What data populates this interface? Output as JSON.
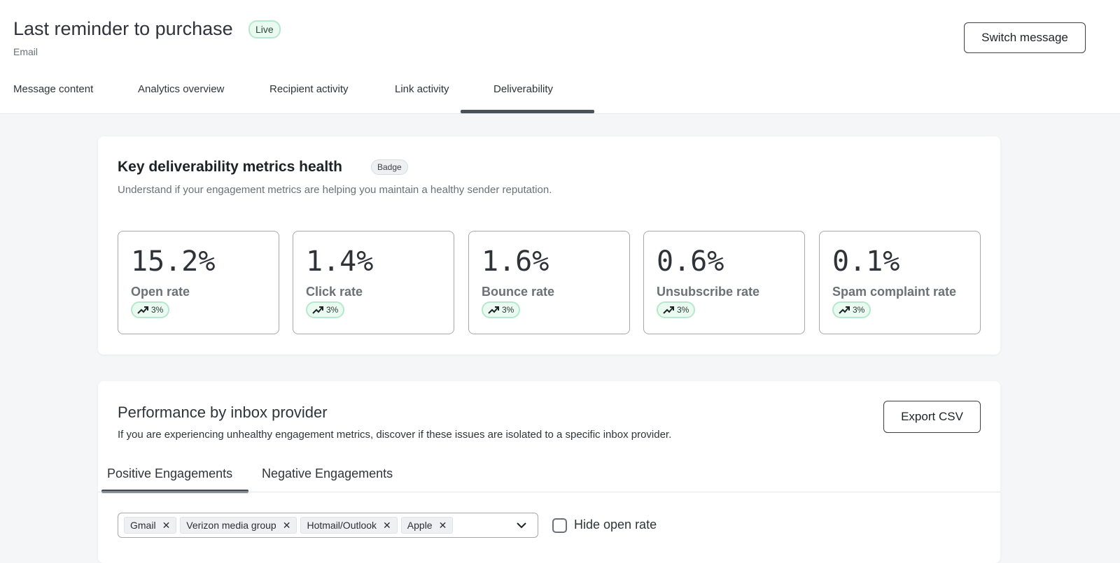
{
  "header": {
    "title": "Last reminder to purchase",
    "status": "Live",
    "channel": "Email",
    "switch_label": "Switch message"
  },
  "tabs": [
    {
      "label": "Message content"
    },
    {
      "label": "Analytics overview"
    },
    {
      "label": "Recipient activity"
    },
    {
      "label": "Link activity"
    },
    {
      "label": "Deliverability",
      "active": true
    }
  ],
  "metrics_card": {
    "title": "Key deliverability metrics health",
    "badge": "Badge",
    "description": "Understand if your engagement metrics are helping you maintain a healthy sender reputation.",
    "metrics": [
      {
        "value": "15.2%",
        "label": "Open rate",
        "trend": "3%"
      },
      {
        "value": "1.4%",
        "label": "Click rate",
        "trend": "3%"
      },
      {
        "value": "1.6%",
        "label": "Bounce rate",
        "trend": "3%"
      },
      {
        "value": "0.6%",
        "label": "Unsubscribe rate",
        "trend": "3%"
      },
      {
        "value": "0.1%",
        "label": "Spam complaint rate",
        "trend": "3%"
      }
    ]
  },
  "provider_card": {
    "title": "Performance by inbox provider",
    "description": "If you are experiencing unhealthy engagement metrics, discover if these issues are isolated to a specific inbox provider.",
    "export_label": "Export CSV",
    "tabs": [
      {
        "label": "Positive Engagements",
        "active": true
      },
      {
        "label": "Negative Engagements"
      }
    ],
    "providers": [
      "Gmail",
      "Verizon media group",
      "Hotmail/Outlook",
      "Apple"
    ],
    "hide_open_rate_label": "Hide open rate",
    "hide_open_rate_checked": false
  },
  "colors": {
    "success_bg": "#eafaf1",
    "success_border": "#b5e8cc",
    "page_bg": "#f5f6f7"
  }
}
